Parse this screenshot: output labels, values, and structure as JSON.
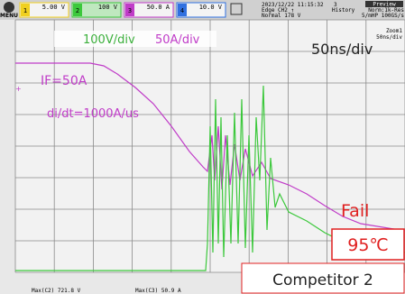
{
  "toolbar": {
    "menu": "MENU",
    "channels": [
      {
        "number": "1",
        "scale": "5.00 V"
      },
      {
        "number": "2",
        "scale": "100 V"
      },
      {
        "number": "3",
        "scale": "50.0 A"
      },
      {
        "number": "4",
        "scale": "10.0 V"
      }
    ],
    "timestamp": "2023/12/22 11:15:32",
    "trigger": "Edge CH2 ↑",
    "trigger_mode": "Normal 178 V",
    "history_count": "3",
    "preview": "Preview",
    "history": "History",
    "acquisition": "Norm:1k-Res",
    "sample": "5/mHP  100GS/s"
  },
  "screen": {
    "zoom": "Zoom1",
    "zoom_scale": "50ns/div"
  },
  "annotations": {
    "voltage_scale": "100V/div",
    "current_scale": "50A/div",
    "time_scale": "50ns/div",
    "forward_current": "IF=50A",
    "di_dt": "di/dt=1000A/us",
    "result": "Fail",
    "temperature": "95℃",
    "device": "Competitor 2"
  },
  "measurements": [
    "Max(C2)  721.8 V",
    "Max(C3)  50.9 A"
  ]
}
